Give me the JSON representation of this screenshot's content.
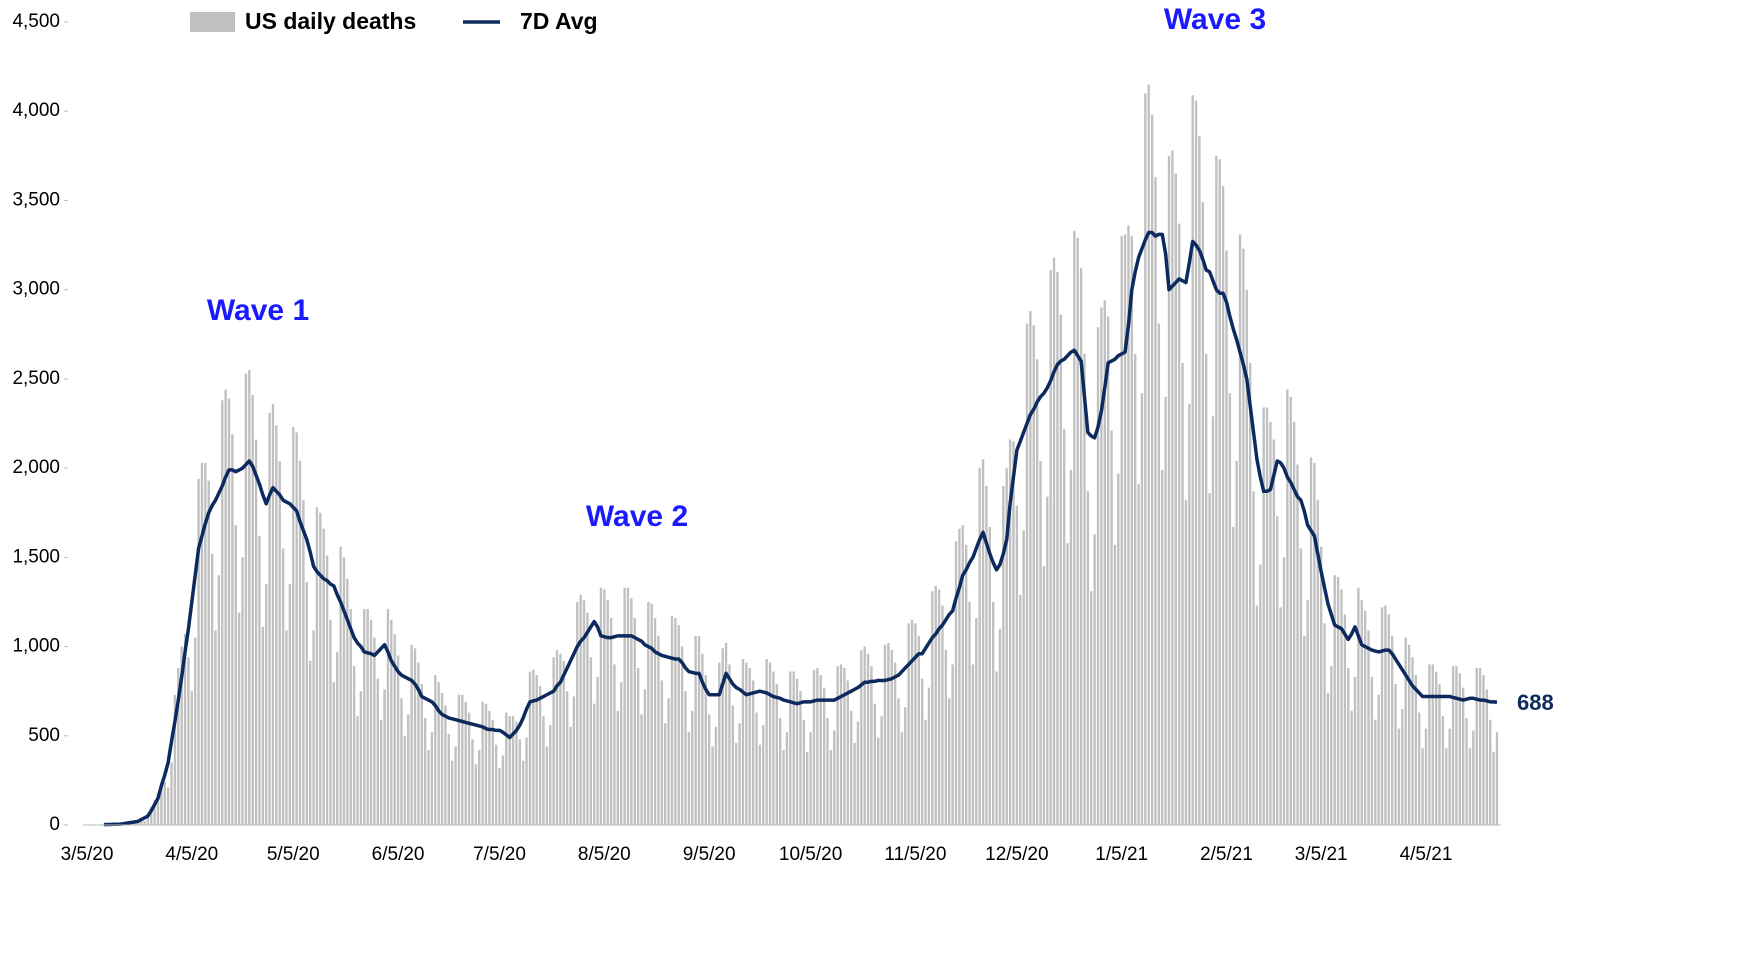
{
  "chart_data": {
    "type": "combo",
    "categories": [
      "3/5/20",
      null,
      null,
      null,
      null,
      null,
      null,
      null,
      null,
      null,
      null,
      null,
      null,
      null,
      null,
      null,
      null,
      null,
      null,
      null,
      null,
      null,
      null,
      null,
      null,
      null,
      null,
      null,
      null,
      null,
      null,
      "4/5/20",
      null,
      null,
      null,
      null,
      null,
      null,
      null,
      null,
      null,
      null,
      null,
      null,
      null,
      null,
      null,
      null,
      null,
      null,
      null,
      null,
      null,
      null,
      null,
      null,
      null,
      null,
      null,
      null,
      null,
      "5/5/20",
      null,
      null,
      null,
      null,
      null,
      null,
      null,
      null,
      null,
      null,
      null,
      null,
      null,
      null,
      null,
      null,
      null,
      null,
      null,
      null,
      null,
      null,
      null,
      null,
      null,
      null,
      null,
      null,
      null,
      null,
      "6/5/20",
      null,
      null,
      null,
      null,
      null,
      null,
      null,
      null,
      null,
      null,
      null,
      null,
      null,
      null,
      null,
      null,
      null,
      null,
      null,
      null,
      null,
      null,
      null,
      null,
      null,
      null,
      null,
      null,
      null,
      "7/5/20",
      null,
      null,
      null,
      null,
      null,
      null,
      null,
      null,
      null,
      null,
      null,
      null,
      null,
      null,
      null,
      null,
      null,
      null,
      null,
      null,
      null,
      null,
      null,
      null,
      null,
      null,
      null,
      null,
      null,
      null,
      "8/5/20",
      null,
      null,
      null,
      null,
      null,
      null,
      null,
      null,
      null,
      null,
      null,
      null,
      null,
      null,
      null,
      null,
      null,
      null,
      null,
      null,
      null,
      null,
      null,
      null,
      null,
      null,
      null,
      null,
      null,
      null,
      "9/5/20",
      null,
      null,
      null,
      null,
      null,
      null,
      null,
      null,
      null,
      null,
      null,
      null,
      null,
      null,
      null,
      null,
      null,
      null,
      null,
      null,
      null,
      null,
      null,
      null,
      null,
      null,
      null,
      null,
      null,
      "10/5/20",
      null,
      null,
      null,
      null,
      null,
      null,
      null,
      null,
      null,
      null,
      null,
      null,
      null,
      null,
      null,
      null,
      null,
      null,
      null,
      null,
      null,
      null,
      null,
      null,
      null,
      null,
      null,
      null,
      null,
      null,
      "11/5/20",
      null,
      null,
      null,
      null,
      null,
      null,
      null,
      null,
      null,
      null,
      null,
      null,
      null,
      null,
      null,
      null,
      null,
      null,
      null,
      null,
      null,
      null,
      null,
      null,
      null,
      null,
      null,
      null,
      null,
      "12/5/20",
      null,
      null,
      null,
      null,
      null,
      null,
      null,
      null,
      null,
      null,
      null,
      null,
      null,
      null,
      null,
      null,
      null,
      null,
      null,
      null,
      null,
      null,
      null,
      null,
      null,
      null,
      null,
      null,
      null,
      null,
      "1/5/21",
      null,
      null,
      null,
      null,
      null,
      null,
      null,
      null,
      null,
      null,
      null,
      null,
      null,
      null,
      null,
      null,
      null,
      null,
      null,
      null,
      null,
      null,
      null,
      null,
      null,
      null,
      null,
      null,
      null,
      null,
      "2/5/21",
      null,
      null,
      null,
      null,
      null,
      null,
      null,
      null,
      null,
      null,
      null,
      null,
      null,
      null,
      null,
      null,
      null,
      null,
      null,
      null,
      null,
      null,
      null,
      null,
      null,
      null,
      null,
      "3/5/21",
      null,
      null,
      null,
      null,
      null,
      null,
      null,
      null,
      null,
      null,
      null,
      null,
      null,
      null,
      null,
      null,
      null,
      null,
      null,
      null,
      null,
      null,
      null,
      null,
      null,
      null,
      null,
      null,
      null,
      null,
      "4/5/21",
      null,
      null,
      null,
      null,
      null,
      null,
      null,
      null,
      null,
      null,
      null,
      null,
      null,
      null,
      null,
      null,
      null,
      null,
      null,
      null,
      null
    ],
    "series": [
      {
        "name": "US daily deaths",
        "type": "bar",
        "color": "#c0c0c0",
        "values": [
          1,
          2,
          2,
          1,
          3,
          5,
          8,
          4,
          4,
          3,
          3,
          8,
          14,
          18,
          20,
          22,
          25,
          24,
          40,
          100,
          140,
          180,
          240,
          240,
          210,
          350,
          730,
          880,
          1000,
          1070,
          940,
          750,
          1050,
          1940,
          2030,
          2030,
          1930,
          1520,
          1090,
          1400,
          2380,
          2440,
          2390,
          2190,
          1680,
          1190,
          1500,
          2530,
          2550,
          2410,
          2160,
          1620,
          1110,
          1350,
          2310,
          2360,
          2240,
          2040,
          1550,
          1090,
          1350,
          2230,
          2200,
          2040,
          1820,
          1360,
          920,
          1090,
          1780,
          1750,
          1660,
          1510,
          1150,
          800,
          970,
          1560,
          1500,
          1380,
          1210,
          890,
          610,
          750,
          1210,
          1210,
          1150,
          1050,
          820,
          590,
          760,
          1210,
          1150,
          1070,
          950,
          710,
          500,
          620,
          1010,
          990,
          910,
          790,
          600,
          420,
          520,
          840,
          800,
          740,
          670,
          510,
          360,
          440,
          730,
          730,
          690,
          630,
          480,
          340,
          420,
          690,
          680,
          640,
          590,
          450,
          320,
          390,
          630,
          610,
          610,
          580,
          480,
          360,
          490,
          860,
          870,
          840,
          780,
          610,
          440,
          560,
          940,
          980,
          960,
          920,
          750,
          550,
          720,
          1250,
          1290,
          1260,
          1190,
          940,
          680,
          830,
          1330,
          1320,
          1260,
          1160,
          900,
          640,
          800,
          1330,
          1330,
          1270,
          1160,
          880,
          620,
          760,
          1250,
          1240,
          1160,
          1060,
          810,
          570,
          710,
          1170,
          1160,
          1120,
          1000,
          750,
          520,
          640,
          1060,
          1060,
          960,
          840,
          620,
          440,
          550,
          910,
          990,
          1020,
          900,
          670,
          460,
          570,
          930,
          910,
          880,
          810,
          630,
          450,
          560,
          930,
          910,
          860,
          790,
          600,
          420,
          520,
          860,
          860,
          820,
          750,
          590,
          410,
          520,
          870,
          880,
          840,
          770,
          600,
          420,
          530,
          890,
          900,
          880,
          810,
          640,
          460,
          580,
          980,
          1000,
          960,
          890,
          680,
          490,
          610,
          1010,
          1020,
          980,
          910,
          710,
          520,
          660,
          1130,
          1150,
          1130,
          1060,
          820,
          590,
          770,
          1310,
          1340,
          1320,
          1230,
          980,
          710,
          900,
          1590,
          1660,
          1680,
          1570,
          1250,
          900,
          1160,
          2000,
          2050,
          1900,
          1670,
          1250,
          860,
          1100,
          1900,
          2000,
          2160,
          2150,
          1790,
          1290,
          1650,
          2810,
          2880,
          2800,
          2610,
          2040,
          1450,
          1840,
          3110,
          3180,
          3100,
          2860,
          2220,
          1580,
          1990,
          3330,
          3290,
          3120,
          2640,
          1870,
          1310,
          1630,
          2790,
          2900,
          2940,
          2850,
          2210,
          1570,
          1970,
          3300,
          3310,
          3360,
          3300,
          2640,
          1910,
          2420,
          4100,
          4150,
          3980,
          3630,
          2810,
          1990,
          2400,
          3750,
          3780,
          3650,
          3370,
          2590,
          1820,
          2360,
          4090,
          4060,
          3860,
          3490,
          2640,
          1860,
          2290,
          3750,
          3730,
          3580,
          3220,
          2420,
          1670,
          2040,
          3310,
          3230,
          3000,
          2590,
          1870,
          1230,
          1460,
          2340,
          2340,
          2260,
          2160,
          1730,
          1220,
          1500,
          2440,
          2400,
          2260,
          2020,
          1550,
          1060,
          1260,
          2060,
          2030,
          1820,
          1560,
          1130,
          740,
          890,
          1400,
          1390,
          1320,
          1180,
          880,
          640,
          830,
          1330,
          1260,
          1200,
          1090,
          830,
          590,
          730,
          1220,
          1230,
          1180,
          1060,
          790,
          540,
          650,
          1050,
          1010,
          940,
          840,
          630,
          430,
          540,
          900,
          900,
          860,
          790,
          610,
          430,
          540,
          890,
          890,
          850,
          770,
          600,
          430,
          530,
          880,
          880,
          840,
          760,
          590,
          410,
          520
        ]
      },
      {
        "name": "7D Avg",
        "type": "line",
        "color": "#0d2a5e",
        "values": [
          null,
          null,
          null,
          null,
          null,
          2,
          3,
          3,
          4,
          4,
          5,
          8,
          11,
          14,
          17,
          20,
          30,
          40,
          50,
          80,
          115,
          150,
          220,
          280,
          350,
          470,
          580,
          700,
          830,
          970,
          1100,
          1250,
          1400,
          1550,
          1620,
          1690,
          1750,
          1790,
          1820,
          1860,
          1900,
          1950,
          1990,
          1990,
          1980,
          1990,
          2000,
          2020,
          2040,
          2010,
          1960,
          1910,
          1850,
          1800,
          1850,
          1890,
          1870,
          1850,
          1820,
          1810,
          1800,
          1780,
          1760,
          1700,
          1650,
          1600,
          1530,
          1450,
          1420,
          1400,
          1380,
          1370,
          1350,
          1340,
          1290,
          1250,
          1200,
          1150,
          1100,
          1050,
          1020,
          1000,
          970,
          965,
          960,
          950,
          970,
          990,
          1010,
          970,
          920,
          890,
          860,
          840,
          830,
          820,
          810,
          790,
          760,
          720,
          710,
          700,
          690,
          670,
          640,
          620,
          610,
          600,
          595,
          590,
          585,
          580,
          575,
          570,
          565,
          560,
          555,
          550,
          540,
          535,
          535,
          530,
          530,
          520,
          505,
          490,
          510,
          530,
          560,
          600,
          650,
          690,
          695,
          700,
          710,
          720,
          730,
          740,
          750,
          780,
          800,
          840,
          880,
          920,
          960,
          1000,
          1030,
          1050,
          1080,
          1110,
          1140,
          1110,
          1060,
          1055,
          1050,
          1050,
          1055,
          1060,
          1060,
          1060,
          1060,
          1060,
          1050,
          1040,
          1030,
          1010,
          1000,
          990,
          970,
          960,
          950,
          945,
          940,
          935,
          930,
          930,
          910,
          880,
          860,
          855,
          850,
          850,
          800,
          760,
          730,
          730,
          730,
          730,
          790,
          850,
          820,
          790,
          770,
          760,
          745,
          730,
          735,
          740,
          745,
          750,
          745,
          740,
          730,
          720,
          715,
          710,
          700,
          695,
          690,
          685,
          680,
          685,
          690,
          690,
          690,
          695,
          700,
          700,
          700,
          700,
          700,
          700,
          710,
          720,
          730,
          740,
          750,
          760,
          770,
          785,
          800,
          800,
          805,
          805,
          810,
          810,
          810,
          815,
          820,
          830,
          840,
          860,
          880,
          900,
          920,
          940,
          960,
          960,
          990,
          1020,
          1050,
          1070,
          1100,
          1120,
          1150,
          1180,
          1200,
          1270,
          1330,
          1400,
          1430,
          1470,
          1500,
          1550,
          1600,
          1640,
          1580,
          1520,
          1470,
          1430,
          1460,
          1520,
          1600,
          1800,
          1950,
          2100,
          2150,
          2200,
          2250,
          2300,
          2330,
          2370,
          2400,
          2420,
          2450,
          2490,
          2540,
          2580,
          2600,
          2610,
          2630,
          2650,
          2660,
          2630,
          2600,
          2400,
          2200,
          2180,
          2170,
          2230,
          2320,
          2450,
          2590,
          2600,
          2610,
          2630,
          2640,
          2650,
          2800,
          3000,
          3100,
          3180,
          3230,
          3280,
          3320,
          3320,
          3300,
          3310,
          3310,
          3200,
          3000,
          3020,
          3040,
          3060,
          3050,
          3040,
          3150,
          3270,
          3250,
          3220,
          3170,
          3110,
          3100,
          3050,
          3000,
          2980,
          2980,
          2930,
          2850,
          2780,
          2720,
          2650,
          2580,
          2500,
          2350,
          2200,
          2050,
          1950,
          1870,
          1870,
          1880,
          1960,
          2040,
          2030,
          2000,
          1950,
          1920,
          1880,
          1840,
          1820,
          1760,
          1680,
          1650,
          1620,
          1520,
          1420,
          1330,
          1240,
          1180,
          1120,
          1110,
          1100,
          1070,
          1040,
          1070,
          1110,
          1060,
          1010,
          1000,
          990,
          980,
          975,
          970,
          975,
          980,
          980,
          960,
          930,
          900,
          870,
          840,
          810,
          780,
          760,
          740,
          720,
          720,
          720,
          720,
          720,
          720,
          720,
          720,
          720,
          715,
          710,
          705,
          700,
          705,
          710,
          710,
          705,
          700,
          700,
          695,
          690,
          690,
          688
        ]
      }
    ],
    "ylim": [
      0,
      4500
    ],
    "yticks": [
      0,
      500,
      {
        "value": 1000,
        "label": "1,000"
      },
      {
        "value": 1500,
        "label": "1,500"
      },
      {
        "value": 2000,
        "label": "2,000"
      },
      {
        "value": 2500,
        "label": "2,500"
      },
      {
        "value": 3000,
        "label": "3,000"
      },
      {
        "value": 3500,
        "label": "3,500"
      },
      {
        "value": 4000,
        "label": "4,000"
      },
      {
        "value": 4500,
        "label": "4,500"
      }
    ],
    "annotations": [
      "Wave 1",
      "Wave 2",
      "Wave 3"
    ]
  }
}
